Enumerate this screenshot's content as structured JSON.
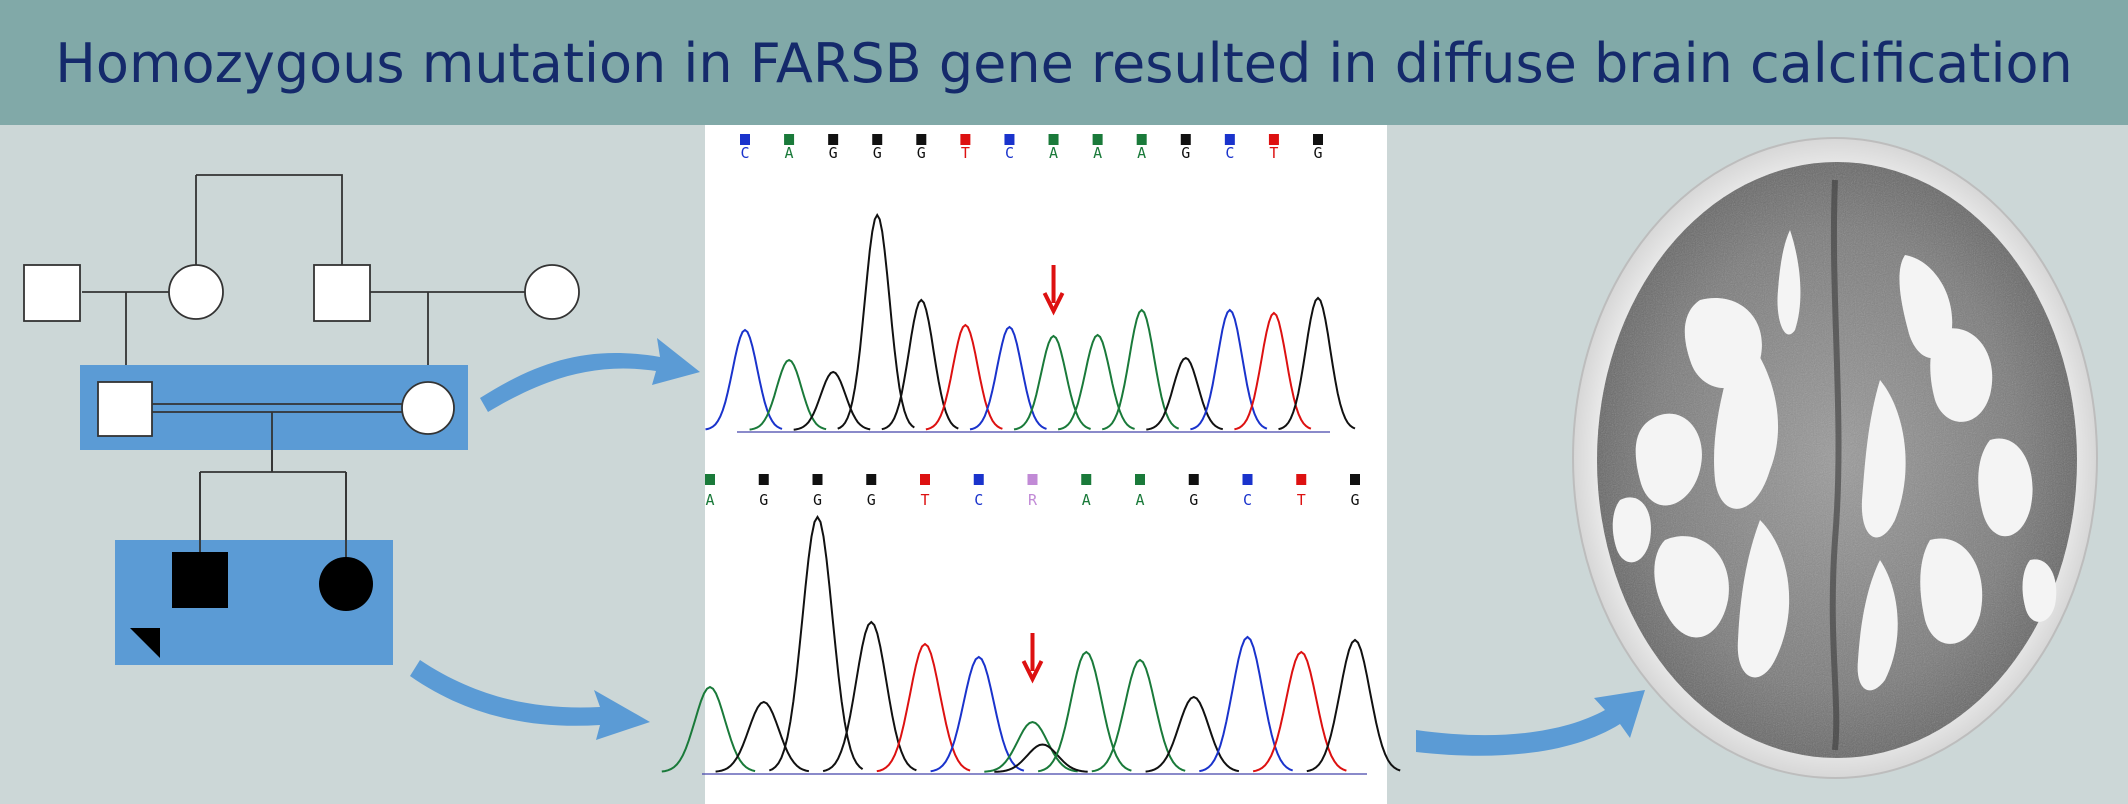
{
  "title": "Homozygous mutation in FARSB gene resulted in diffuse brain calcification",
  "colors": {
    "title_bar": "#81a9a8",
    "title_text": "#152a6b",
    "background": "#ccd7d7",
    "highlight_box": "#5b9bd5",
    "arrow": "#5b9bd5",
    "base_A": "#1a7a3a",
    "base_C": "#1a33cc",
    "base_G": "#111111",
    "base_T": "#dd1111",
    "base_R": "#c18ad6",
    "mutation_arrow": "#dd1111"
  },
  "pedigree": {
    "generation_1": [
      "male",
      "female",
      "male",
      "female"
    ],
    "generation_2": [
      "male",
      "female"
    ],
    "generation_3": [
      "affected-male-proband",
      "affected-female"
    ],
    "consanguineous": true
  },
  "chromatogram_top": {
    "bases": [
      "C",
      "A",
      "G",
      "G",
      "G",
      "T",
      "C",
      "A",
      "A",
      "A",
      "G",
      "C",
      "T",
      "G"
    ],
    "marker_position": 7
  },
  "chromatogram_bottom": {
    "bases": [
      "A",
      "G",
      "G",
      "G",
      "T",
      "C",
      "R",
      "A",
      "A",
      "G",
      "C",
      "T",
      "G"
    ],
    "marker_position": 6
  },
  "ct_scan": {
    "icon": "brain-ct-axial-image"
  }
}
